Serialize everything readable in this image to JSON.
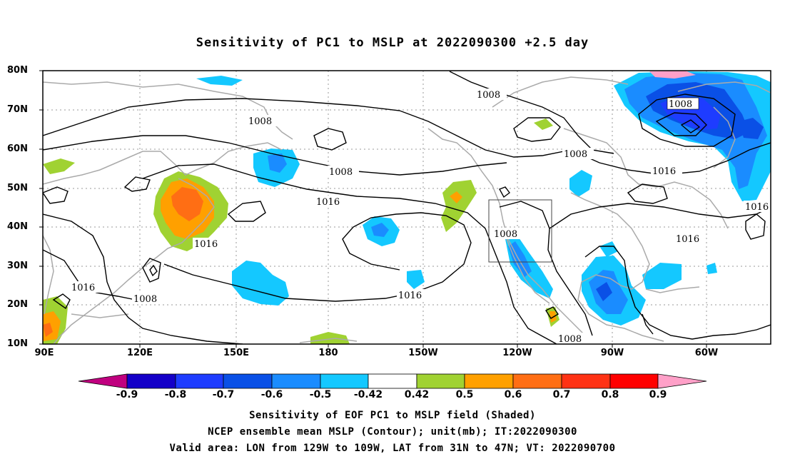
{
  "title": "Sensitivity of PC1 to MSLP at 2022090300 +2.5 day",
  "lat_labels": [
    "80N",
    "70N",
    "60N",
    "50N",
    "40N",
    "30N",
    "20N",
    "10N"
  ],
  "lon_labels": [
    "90E",
    "120E",
    "150E",
    "180",
    "150W",
    "120W",
    "90W",
    "60W"
  ],
  "contour_labels": [
    "1008",
    "1008",
    "1008",
    "1008",
    "1008",
    "1008",
    "1008",
    "1008",
    "1016",
    "1016",
    "1016",
    "1016",
    "1016",
    "1016",
    "1016"
  ],
  "colorbar": {
    "labels": [
      "-0.9",
      "-0.8",
      "-0.7",
      "-0.6",
      "-0.5",
      "-0.42",
      "0.42",
      "0.5",
      "0.6",
      "0.7",
      "0.8",
      "0.9"
    ],
    "colors": [
      "#c0007f",
      "#1400c8",
      "#1e3cff",
      "#0a50e6",
      "#1a8cff",
      "#14c8ff",
      "#ffffff",
      "#a0d232",
      "#ffa000",
      "#ff6e14",
      "#ff3214",
      "#ff0000",
      "#ffa0c8"
    ]
  },
  "captions": [
    "Sensitivity of EOF PC1 to MSLP field (Shaded)",
    "NCEP ensemble mean MSLP (Contour); unit(mb); IT:2022090300",
    "Valid area: LON from 129W to 109W, LAT from 31N to 47N; VT: 2022090700"
  ],
  "valid_area": {
    "lon": [
      "129W",
      "109W"
    ],
    "lat": [
      "31N",
      "47N"
    ]
  }
}
